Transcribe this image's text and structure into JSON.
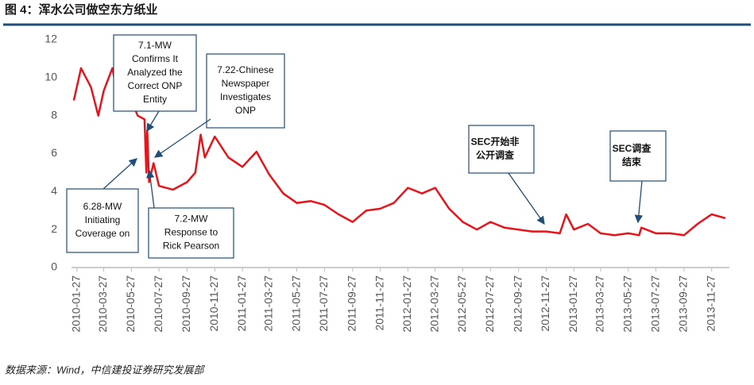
{
  "chart_data": {
    "type": "line",
    "title": "图 4：浑水公司做空东方纸业",
    "source": "数据来源：Wind，中信建投证券研究发展部",
    "xlim": [
      "2010-01-15",
      "2014-01-05"
    ],
    "ylim": [
      0,
      12
    ],
    "yticks": [
      0,
      2,
      4,
      6,
      8,
      10,
      12
    ],
    "xticks": [
      "2010-01-27",
      "2010-03-27",
      "2010-05-27",
      "2010-07-27",
      "2010-09-27",
      "2010-11-27",
      "2011-01-27",
      "2011-03-27",
      "2011-05-27",
      "2011-07-27",
      "2011-09-27",
      "2011-11-27",
      "2012-01-27",
      "2012-03-27",
      "2012-05-27",
      "2012-07-27",
      "2012-09-27",
      "2012-11-27",
      "2013-01-27",
      "2013-03-27",
      "2013-05-27",
      "2013-07-27",
      "2013-09-27",
      "2013-11-27"
    ],
    "x": [
      "2010-01-20",
      "2010-02-05",
      "2010-02-27",
      "2010-03-15",
      "2010-03-27",
      "2010-04-15",
      "2010-04-27",
      "2010-05-15",
      "2010-05-27",
      "2010-06-10",
      "2010-06-25",
      "2010-06-29",
      "2010-07-01",
      "2010-07-05",
      "2010-07-15",
      "2010-07-27",
      "2010-08-27",
      "2010-09-27",
      "2010-10-15",
      "2010-10-27",
      "2010-11-05",
      "2010-11-27",
      "2010-12-27",
      "2011-01-27",
      "2011-02-27",
      "2011-03-27",
      "2011-04-27",
      "2011-05-27",
      "2011-06-27",
      "2011-07-27",
      "2011-08-27",
      "2011-09-27",
      "2011-10-27",
      "2011-11-27",
      "2011-12-27",
      "2012-01-27",
      "2012-02-27",
      "2012-03-27",
      "2012-04-27",
      "2012-05-27",
      "2012-06-27",
      "2012-07-27",
      "2012-08-27",
      "2012-09-27",
      "2012-10-27",
      "2012-11-27",
      "2012-12-27",
      "2013-01-10",
      "2013-01-27",
      "2013-02-27",
      "2013-03-27",
      "2013-04-27",
      "2013-05-27",
      "2013-06-20",
      "2013-06-25",
      "2013-07-27",
      "2013-08-27",
      "2013-09-27",
      "2013-10-27",
      "2013-11-27",
      "2013-12-27"
    ],
    "series": [
      {
        "color": "#e8141a",
        "values": [
          8.8,
          10.5,
          9.5,
          8.0,
          9.3,
          10.5,
          9.0,
          8.3,
          8.8,
          8.0,
          7.8,
          5.0,
          7.2,
          4.5,
          5.5,
          4.3,
          4.1,
          4.5,
          5.0,
          7.0,
          5.8,
          6.9,
          5.8,
          5.3,
          6.1,
          4.9,
          3.9,
          3.4,
          3.5,
          3.3,
          2.8,
          2.4,
          3.0,
          3.1,
          3.4,
          4.2,
          3.9,
          4.2,
          3.1,
          2.4,
          2.0,
          2.4,
          2.1,
          2.0,
          1.9,
          1.9,
          1.8,
          2.8,
          2.0,
          2.3,
          1.8,
          1.7,
          1.8,
          1.7,
          2.1,
          1.8,
          1.8,
          1.7,
          2.3,
          2.8,
          2.6
        ]
      }
    ],
    "annotations": [
      {
        "lines": [
          "7.1-MW",
          "Confirms It",
          "Analyzed the",
          "Correct ONP",
          "Entity"
        ]
      },
      {
        "lines": [
          "7.22-Chinese",
          "Newspaper",
          "Investigates",
          "ONP"
        ]
      },
      {
        "lines": [
          "6.28-MW",
          "Initiating",
          "Coverage on"
        ]
      },
      {
        "lines": [
          "7.2-MW",
          "Response to",
          "Rick Pearson"
        ]
      },
      {
        "lines": [
          "SEC开始非",
          "公开调查"
        ]
      },
      {
        "lines": [
          "SEC调查",
          "结束"
        ]
      }
    ]
  }
}
